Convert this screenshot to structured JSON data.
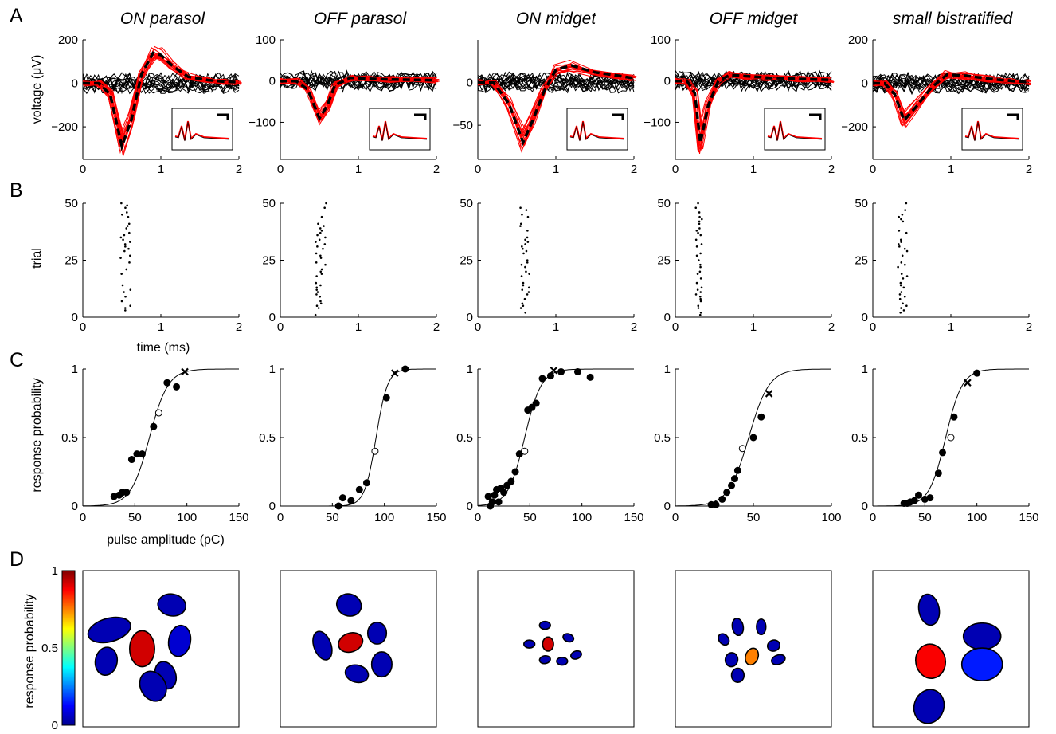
{
  "panel_letters": [
    "A",
    "B",
    "C",
    "D"
  ],
  "cell_types": [
    "ON parasol",
    "OFF parasol",
    "ON midget",
    "OFF midget",
    "small bistratified"
  ],
  "labels": {
    "a_ylabel": "voltage (μV)",
    "b_ylabel": "trial",
    "b_xlabel": "time (ms)",
    "c_ylabel": "response probability",
    "c_xlabel": "pulse amplitude (pC)",
    "d_colorbar_label": "response probability"
  },
  "colors": {
    "evoked": "#ff0000",
    "nonevoked": "#000000",
    "colormap": "jet"
  },
  "chart_data": [
    {
      "panel": "A",
      "type": "line",
      "xlim": [
        0,
        2
      ],
      "x_ticks": [
        "0",
        "1",
        "2"
      ],
      "panels": [
        {
          "title": "ON parasol",
          "ylim": [
            -350,
            200
          ],
          "y_ticks": [
            {
              "v": 200,
              "t": "200"
            },
            {
              "v": 0,
              "t": "0"
            },
            {
              "v": -200,
              "t": "−200"
            }
          ],
          "mean_x": [
            0,
            0.2,
            0.35,
            0.5,
            0.62,
            0.75,
            0.9,
            1.0,
            1.15,
            1.35,
            1.6,
            1.8,
            2.0
          ],
          "mean_y": [
            0,
            0,
            -50,
            -290,
            -170,
            40,
            140,
            130,
            80,
            30,
            15,
            8,
            5
          ]
        },
        {
          "title": "OFF parasol",
          "ylim": [
            -190,
            100
          ],
          "y_ticks": [
            {
              "v": 100,
              "t": "100"
            },
            {
              "v": 0,
              "t": "0"
            },
            {
              "v": -100,
              "t": "−100"
            }
          ],
          "mean_x": [
            0,
            0.2,
            0.35,
            0.5,
            0.6,
            0.7,
            0.9,
            1.1,
            1.4,
            1.7,
            2.0
          ],
          "mean_y": [
            0,
            0,
            -20,
            -90,
            -60,
            -10,
            8,
            6,
            4,
            3,
            2
          ]
        },
        {
          "title": "ON midget",
          "ylim": [
            -90,
            50
          ],
          "y_ticks": [
            {
              "v": 0,
              "t": "0"
            },
            {
              "v": -50,
              "t": "−50"
            }
          ],
          "mean_x": [
            0,
            0.2,
            0.4,
            0.58,
            0.7,
            0.85,
            1.0,
            1.2,
            1.5,
            1.8,
            2.0
          ],
          "mean_y": [
            0,
            0,
            -25,
            -70,
            -45,
            -10,
            15,
            20,
            12,
            8,
            5
          ]
        },
        {
          "title": "OFF midget",
          "ylim": [
            -190,
            100
          ],
          "y_ticks": [
            {
              "v": 100,
              "t": "100"
            },
            {
              "v": 0,
              "t": "0"
            },
            {
              "v": -100,
              "t": "−100"
            }
          ],
          "mean_x": [
            0,
            0.15,
            0.25,
            0.32,
            0.42,
            0.55,
            0.7,
            0.9,
            1.2,
            1.6,
            2.0
          ],
          "mean_y": [
            0,
            0,
            -30,
            -150,
            -60,
            0,
            15,
            12,
            8,
            5,
            3
          ]
        },
        {
          "title": "small bistratified",
          "ylim": [
            -350,
            200
          ],
          "y_ticks": [
            {
              "v": 200,
              "t": "200"
            },
            {
              "v": 0,
              "t": "0"
            },
            {
              "v": -200,
              "t": "−200"
            }
          ],
          "mean_x": [
            0,
            0.15,
            0.28,
            0.4,
            0.55,
            0.75,
            0.95,
            1.2,
            1.5,
            1.8,
            2.0
          ],
          "mean_y": [
            0,
            0,
            -50,
            -170,
            -110,
            -20,
            40,
            35,
            20,
            10,
            5
          ]
        }
      ]
    },
    {
      "panel": "B",
      "type": "scatter",
      "xlim": [
        0,
        2
      ],
      "ylim": [
        0,
        50
      ],
      "x_ticks": [
        "0",
        "1",
        "2"
      ],
      "y_ticks": [
        "0",
        "25",
        "50"
      ],
      "panels": [
        {
          "spike_time_mean_ms": 0.55,
          "spike_time_range_ms": [
            0.48,
            0.62
          ],
          "trials": 50
        },
        {
          "spike_time_mean_ms": 0.52,
          "spike_time_range_ms": [
            0.45,
            0.6
          ],
          "trials": 50
        },
        {
          "spike_time_mean_ms": 0.6,
          "spike_time_range_ms": [
            0.54,
            0.66
          ],
          "trials": 50
        },
        {
          "spike_time_mean_ms": 0.3,
          "spike_time_range_ms": [
            0.26,
            0.34
          ],
          "trials": 50
        },
        {
          "spike_time_mean_ms": 0.38,
          "spike_time_range_ms": [
            0.32,
            0.45
          ],
          "trials": 50
        }
      ]
    },
    {
      "panel": "C",
      "type": "scatter",
      "ylim": [
        0,
        1
      ],
      "y_ticks": [
        "0",
        "0.5",
        "1"
      ],
      "panels": [
        {
          "xlim": [
            0,
            150
          ],
          "x_ticks": [
            "0",
            "50",
            "100",
            "150"
          ],
          "fit_mid": 64,
          "fit_slope": 9,
          "points": [
            [
              30,
              0.07
            ],
            [
              35,
              0.08
            ],
            [
              38,
              0.1
            ],
            [
              42,
              0.1
            ],
            [
              47,
              0.34
            ],
            [
              52,
              0.38
            ],
            [
              57,
              0.38
            ],
            [
              68,
              0.58
            ],
            [
              81,
              0.9
            ],
            [
              90,
              0.87
            ]
          ],
          "open": [
            73,
            0.68
          ],
          "cross": [
            98,
            0.98
          ]
        },
        {
          "xlim": [
            0,
            150
          ],
          "x_ticks": [
            "0",
            "50",
            "100",
            "150"
          ],
          "fit_mid": 92,
          "fit_slope": 5.5,
          "points": [
            [
              56,
              0
            ],
            [
              60,
              0.06
            ],
            [
              68,
              0.04
            ],
            [
              76,
              0.12
            ],
            [
              83,
              0.17
            ],
            [
              102,
              0.79
            ],
            [
              120,
              1.0
            ]
          ],
          "open": [
            91,
            0.4
          ],
          "cross": [
            110,
            0.97
          ]
        },
        {
          "xlim": [
            0,
            150
          ],
          "x_ticks": [
            "0",
            "50",
            "100",
            "150"
          ],
          "fit_mid": 45,
          "fit_slope": 8,
          "points": [
            [
              10,
              0.07
            ],
            [
              12,
              0
            ],
            [
              14,
              0.03
            ],
            [
              16,
              0.08
            ],
            [
              18,
              0.12
            ],
            [
              20,
              0.03
            ],
            [
              22,
              0.13
            ],
            [
              25,
              0.1
            ],
            [
              28,
              0.15
            ],
            [
              32,
              0.18
            ],
            [
              36,
              0.25
            ],
            [
              40,
              0.38
            ],
            [
              48,
              0.7
            ],
            [
              52,
              0.72
            ],
            [
              56,
              0.75
            ],
            [
              62,
              0.93
            ],
            [
              70,
              0.95
            ],
            [
              80,
              0.98
            ],
            [
              96,
              0.98
            ],
            [
              108,
              0.94
            ]
          ],
          "open": [
            45,
            0.4
          ],
          "cross": [
            73,
            0.99
          ]
        },
        {
          "xlim": [
            0,
            100
          ],
          "x_ticks": [
            "0",
            "50",
            "100"
          ],
          "fit_mid": 47,
          "fit_slope": 6.5,
          "points": [
            [
              23,
              0.01
            ],
            [
              26,
              0.01
            ],
            [
              30,
              0.05
            ],
            [
              33,
              0.1
            ],
            [
              36,
              0.15
            ],
            [
              38,
              0.2
            ],
            [
              40,
              0.26
            ],
            [
              50,
              0.5
            ],
            [
              55,
              0.65
            ]
          ],
          "open": [
            43,
            0.42
          ],
          "cross": [
            60,
            0.82
          ]
        },
        {
          "xlim": [
            0,
            150
          ],
          "x_ticks": [
            "0",
            "50",
            "100",
            "150"
          ],
          "fit_mid": 70,
          "fit_slope": 8,
          "points": [
            [
              30,
              0.02
            ],
            [
              33,
              0.02
            ],
            [
              36,
              0.03
            ],
            [
              40,
              0.04
            ],
            [
              44,
              0.08
            ],
            [
              50,
              0.05
            ],
            [
              55,
              0.06
            ],
            [
              63,
              0.24
            ],
            [
              67,
              0.39
            ],
            [
              78,
              0.65
            ],
            [
              100,
              0.97
            ]
          ],
          "open": [
            75,
            0.5
          ],
          "cross": [
            91,
            0.9
          ]
        }
      ]
    },
    {
      "panel": "D",
      "type": "heatmap",
      "colorbar_ticks": [
        "1",
        "0.5",
        "0"
      ],
      "panels": [
        {
          "ellipses": [
            [
              0.17,
              0.38,
              0.28,
              0.15,
              -15,
              0.05
            ],
            [
              0.38,
              0.5,
              0.16,
              0.23,
              0,
              0.92
            ],
            [
              0.57,
              0.22,
              0.18,
              0.14,
              10,
              0.05
            ],
            [
              0.62,
              0.45,
              0.14,
              0.2,
              10,
              0.08
            ],
            [
              0.53,
              0.67,
              0.13,
              0.18,
              -20,
              0.05
            ],
            [
              0.15,
              0.58,
              0.14,
              0.18,
              10,
              0.05
            ],
            [
              0.45,
              0.74,
              0.16,
              0.2,
              -30,
              0.05
            ]
          ]
        },
        {
          "ellipses": [
            [
              0.45,
              0.46,
              0.16,
              0.12,
              -20,
              0.92
            ],
            [
              0.44,
              0.22,
              0.16,
              0.14,
              20,
              0.05
            ],
            [
              0.27,
              0.48,
              0.11,
              0.19,
              -20,
              0.05
            ],
            [
              0.62,
              0.4,
              0.12,
              0.14,
              0,
              0.05
            ],
            [
              0.65,
              0.6,
              0.13,
              0.16,
              0,
              0.05
            ],
            [
              0.49,
              0.66,
              0.15,
              0.11,
              15,
              0.05
            ]
          ]
        },
        {
          "ellipses": [
            [
              0.45,
              0.47,
              0.07,
              0.09,
              0,
              0.92
            ],
            [
              0.43,
              0.35,
              0.07,
              0.05,
              0,
              0.05
            ],
            [
              0.58,
              0.43,
              0.07,
              0.05,
              20,
              0.05
            ],
            [
              0.33,
              0.47,
              0.07,
              0.05,
              0,
              0.05
            ],
            [
              0.43,
              0.57,
              0.07,
              0.05,
              -10,
              0.05
            ],
            [
              0.63,
              0.54,
              0.07,
              0.05,
              -20,
              0.05
            ],
            [
              0.54,
              0.58,
              0.07,
              0.05,
              0,
              0.05
            ]
          ]
        },
        {
          "ellipses": [
            [
              0.49,
              0.55,
              0.08,
              0.11,
              20,
              0.75
            ],
            [
              0.4,
              0.36,
              0.07,
              0.11,
              -10,
              0.05
            ],
            [
              0.55,
              0.36,
              0.06,
              0.1,
              0,
              0.05
            ],
            [
              0.31,
              0.44,
              0.06,
              0.08,
              -40,
              0.05
            ],
            [
              0.36,
              0.57,
              0.08,
              0.09,
              10,
              0.05
            ],
            [
              0.63,
              0.48,
              0.08,
              0.07,
              -20,
              0.05
            ],
            [
              0.66,
              0.57,
              0.09,
              0.06,
              -20,
              0.05
            ],
            [
              0.4,
              0.67,
              0.08,
              0.09,
              0,
              0.05
            ]
          ]
        },
        {
          "ellipses": [
            [
              0.36,
              0.25,
              0.13,
              0.2,
              -10,
              0.05
            ],
            [
              0.37,
              0.58,
              0.19,
              0.22,
              -10,
              0.88
            ],
            [
              0.7,
              0.42,
              0.24,
              0.17,
              0,
              0.05
            ],
            [
              0.7,
              0.6,
              0.26,
              0.21,
              0,
              0.15
            ],
            [
              0.36,
              0.87,
              0.19,
              0.22,
              20,
              0.05
            ]
          ]
        }
      ]
    }
  ]
}
